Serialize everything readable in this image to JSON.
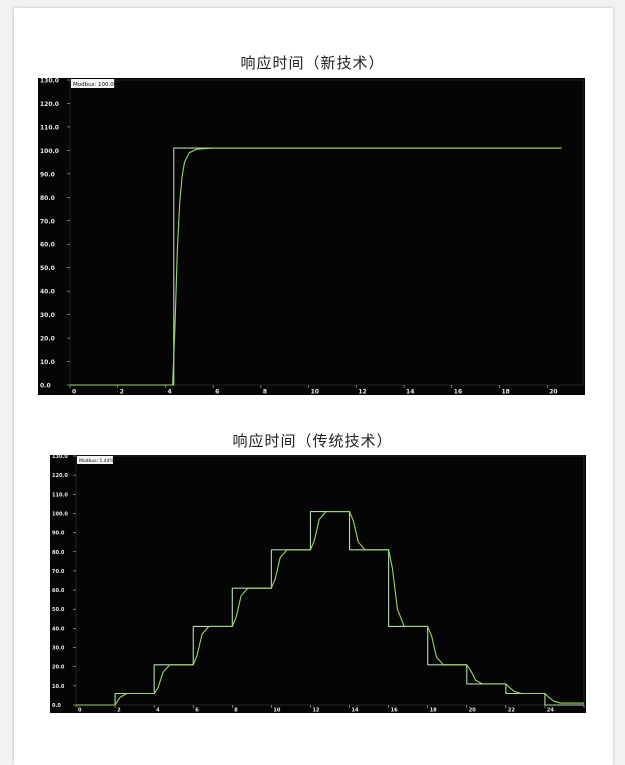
{
  "chart_data": [
    {
      "type": "line",
      "title": "响应时间（新技术）",
      "annotation": "Modbus: 100.00%",
      "xlim": [
        0,
        21.5
      ],
      "ylim": [
        0,
        130
      ],
      "x_ticks": [
        "0",
        "2",
        "4",
        "6",
        "8",
        "10",
        "12",
        "14",
        "16",
        "18",
        "20"
      ],
      "y_ticks": [
        "0.0",
        "10.0",
        "20.0",
        "30.0",
        "40.0",
        "50.0",
        "60.0",
        "70.0",
        "80.0",
        "90.0",
        "100.0",
        "110.0",
        "120.0",
        "130.0"
      ],
      "background": "#050505",
      "series": [
        {
          "color": "#b4d7b4",
          "points": [
            [
              0,
              0
            ],
            [
              4.35,
              0
            ],
            [
              4.35,
              101
            ],
            [
              20.6,
              101
            ]
          ]
        },
        {
          "color": "#9ed65c",
          "points": [
            [
              0,
              0
            ],
            [
              4.3,
              0
            ],
            [
              4.4,
              25
            ],
            [
              4.5,
              58
            ],
            [
              4.6,
              78
            ],
            [
              4.7,
              89
            ],
            [
              4.8,
              95
            ],
            [
              5.0,
              99
            ],
            [
              5.3,
              100.5
            ],
            [
              6,
              101
            ],
            [
              20.6,
              101
            ]
          ]
        }
      ]
    },
    {
      "type": "line",
      "title": "响应时间（传统技术）",
      "annotation": "Modbus: 1.44%",
      "xlim": [
        0,
        26
      ],
      "ylim": [
        0,
        130
      ],
      "x_ticks": [
        "0",
        "2",
        "4",
        "6",
        "8",
        "10",
        "12",
        "14",
        "16",
        "18",
        "20",
        "22",
        "24",
        "26"
      ],
      "y_ticks": [
        "0.0",
        "10.0",
        "20.0",
        "30.0",
        "40.0",
        "50.0",
        "60.0",
        "70.0",
        "80.0",
        "90.0",
        "100.0",
        "110.0",
        "120.0",
        "130.0"
      ],
      "background": "#050505",
      "series": [
        {
          "color": "#b4d7b4",
          "points": [
            [
              0,
              0
            ],
            [
              2,
              0
            ],
            [
              2,
              6
            ],
            [
              4,
              6
            ],
            [
              4,
              21
            ],
            [
              6,
              21
            ],
            [
              6,
              41
            ],
            [
              8,
              41
            ],
            [
              8,
              61
            ],
            [
              10,
              61
            ],
            [
              10,
              81
            ],
            [
              12,
              81
            ],
            [
              12,
              101
            ],
            [
              14,
              101
            ],
            [
              14,
              81
            ],
            [
              16,
              81
            ],
            [
              16,
              41
            ],
            [
              18,
              41
            ],
            [
              18,
              21
            ],
            [
              20,
              21
            ],
            [
              20,
              11
            ],
            [
              22,
              11
            ],
            [
              22,
              6
            ],
            [
              24,
              6
            ],
            [
              24,
              0
            ],
            [
              26,
              0
            ]
          ]
        },
        {
          "color": "#9ed65c",
          "points": [
            [
              0,
              0
            ],
            [
              2,
              0
            ],
            [
              2.25,
              4
            ],
            [
              2.6,
              6
            ],
            [
              4,
              6
            ],
            [
              4.2,
              9
            ],
            [
              4.45,
              17
            ],
            [
              4.8,
              21
            ],
            [
              6,
              21
            ],
            [
              6.2,
              26
            ],
            [
              6.45,
              37
            ],
            [
              6.8,
              41
            ],
            [
              8,
              41
            ],
            [
              8.2,
              46
            ],
            [
              8.45,
              57
            ],
            [
              8.8,
              61
            ],
            [
              10,
              61
            ],
            [
              10.2,
              66
            ],
            [
              10.45,
              77
            ],
            [
              10.8,
              81
            ],
            [
              12,
              81
            ],
            [
              12.2,
              86
            ],
            [
              12.45,
              97
            ],
            [
              12.8,
              101
            ],
            [
              14,
              101
            ],
            [
              14.2,
              96
            ],
            [
              14.45,
              85
            ],
            [
              14.8,
              81
            ],
            [
              16,
              81
            ],
            [
              16.2,
              71
            ],
            [
              16.45,
              50
            ],
            [
              16.8,
              41
            ],
            [
              18,
              41
            ],
            [
              18.2,
              36
            ],
            [
              18.45,
              25
            ],
            [
              18.8,
              21
            ],
            [
              20,
              21
            ],
            [
              20.2,
              18
            ],
            [
              20.45,
              13
            ],
            [
              20.8,
              11
            ],
            [
              22,
              11
            ],
            [
              22.2,
              9
            ],
            [
              22.45,
              7
            ],
            [
              22.8,
              6
            ],
            [
              24,
              6
            ],
            [
              24.2,
              4
            ],
            [
              24.45,
              2
            ],
            [
              24.8,
              1
            ],
            [
              26,
              1
            ]
          ]
        }
      ]
    }
  ]
}
